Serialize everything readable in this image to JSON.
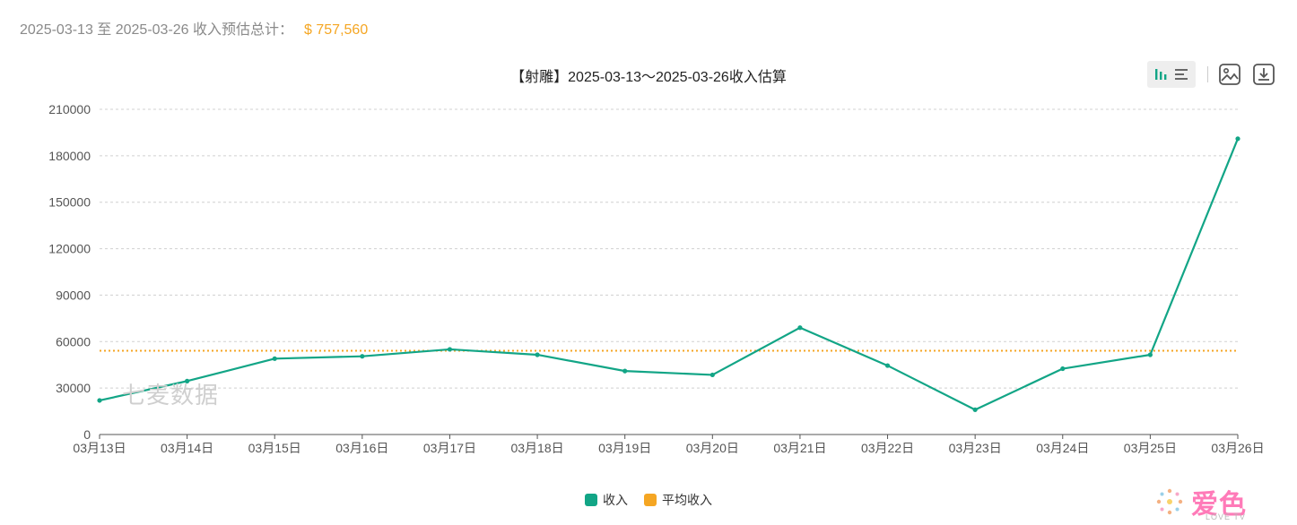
{
  "summary": {
    "text": "2025-03-13 至 2025-03-26 收入预估总计：",
    "amount": "$ 757,560"
  },
  "toolbar": {
    "bar_view_icon": "bar-chart-icon",
    "list_view_icon": "list-icon",
    "save_image_icon": "image-icon",
    "download_icon": "download-icon"
  },
  "watermark": "七麦数据",
  "logo": {
    "text": "爱色",
    "sub": "LOVE TV"
  },
  "colors": {
    "series": "#12a586",
    "average": "#f5a623",
    "grid": "#d0d0d0"
  },
  "chart_data": {
    "type": "line",
    "title": "【射雕】2025-03-13～2025-03-26收入估算",
    "categories": [
      "03月13日",
      "03月14日",
      "03月15日",
      "03月16日",
      "03月17日",
      "03月18日",
      "03月19日",
      "03月20日",
      "03月21日",
      "03月22日",
      "03月23日",
      "03月24日",
      "03月25日",
      "03月26日"
    ],
    "series": [
      {
        "name": "收入",
        "values": [
          22000,
          34500,
          49000,
          50500,
          55000,
          51500,
          41000,
          38500,
          69000,
          44500,
          16000,
          42500,
          51500,
          191000
        ]
      }
    ],
    "average_line": {
      "name": "平均收入",
      "value": 54111
    },
    "yticks": [
      0,
      30000,
      60000,
      90000,
      120000,
      150000,
      180000,
      210000
    ],
    "ylim": [
      0,
      210000
    ],
    "grid": true,
    "legend": "bottom-center"
  }
}
